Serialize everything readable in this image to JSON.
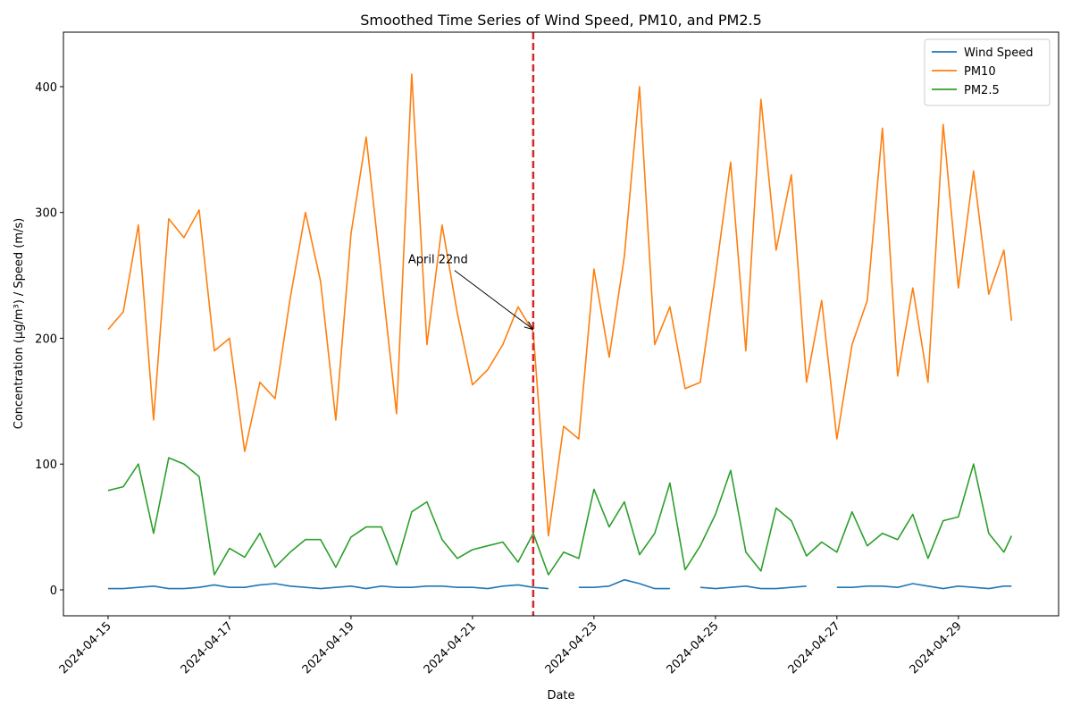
{
  "chart_data": {
    "type": "line",
    "title": "Smoothed Time Series of Wind Speed, PM10, and PM2.5",
    "xlabel": "Date",
    "ylabel": "Concentration (µg/m³) / Speed (m/s)",
    "x": [
      "2024-04-15 00:00",
      "2024-04-15 06:00",
      "2024-04-15 12:00",
      "2024-04-15 18:00",
      "2024-04-16 00:00",
      "2024-04-16 06:00",
      "2024-04-16 12:00",
      "2024-04-16 18:00",
      "2024-04-17 00:00",
      "2024-04-17 06:00",
      "2024-04-17 12:00",
      "2024-04-17 18:00",
      "2024-04-18 00:00",
      "2024-04-18 06:00",
      "2024-04-18 12:00",
      "2024-04-18 18:00",
      "2024-04-19 00:00",
      "2024-04-19 06:00",
      "2024-04-19 12:00",
      "2024-04-19 18:00",
      "2024-04-20 00:00",
      "2024-04-20 06:00",
      "2024-04-20 12:00",
      "2024-04-20 18:00",
      "2024-04-21 00:00",
      "2024-04-21 06:00",
      "2024-04-21 12:00",
      "2024-04-21 18:00",
      "2024-04-22 00:00",
      "2024-04-22 06:00",
      "2024-04-22 12:00",
      "2024-04-22 18:00",
      "2024-04-23 00:00",
      "2024-04-23 06:00",
      "2024-04-23 12:00",
      "2024-04-23 18:00",
      "2024-04-24 00:00",
      "2024-04-24 06:00",
      "2024-04-24 12:00",
      "2024-04-24 18:00",
      "2024-04-25 00:00",
      "2024-04-25 06:00",
      "2024-04-25 12:00",
      "2024-04-25 18:00",
      "2024-04-26 00:00",
      "2024-04-26 06:00",
      "2024-04-26 12:00",
      "2024-04-26 18:00",
      "2024-04-27 00:00",
      "2024-04-27 06:00",
      "2024-04-27 12:00",
      "2024-04-27 18:00",
      "2024-04-28 00:00",
      "2024-04-28 06:00",
      "2024-04-28 12:00",
      "2024-04-28 18:00",
      "2024-04-29 00:00",
      "2024-04-29 06:00",
      "2024-04-29 12:00",
      "2024-04-29 18:00",
      "2024-04-29 21:00"
    ],
    "series": [
      {
        "name": "Wind Speed",
        "color": "#1f77b4",
        "values": [
          1,
          1,
          2,
          3,
          1,
          1,
          2,
          4,
          2,
          2,
          4,
          5,
          3,
          2,
          1,
          2,
          3,
          1,
          3,
          2,
          2,
          3,
          3,
          2,
          2,
          1,
          3,
          4,
          2,
          1,
          null,
          2,
          2,
          3,
          8,
          5,
          1,
          1,
          null,
          2,
          1,
          2,
          3,
          1,
          1,
          2,
          3,
          null,
          2,
          2,
          3,
          3,
          2,
          5,
          3,
          1,
          3,
          2,
          1,
          3,
          3
        ]
      },
      {
        "name": "PM10",
        "color": "#ff7f0e",
        "values": [
          207,
          221,
          290,
          135,
          295,
          280,
          302,
          190,
          200,
          110,
          165,
          152,
          232,
          300,
          245,
          135,
          283,
          360,
          250,
          140,
          410,
          195,
          290,
          220,
          163,
          175,
          195,
          225,
          205,
          43,
          130,
          120,
          255,
          185,
          265,
          400,
          195,
          225,
          160,
          165,
          250,
          340,
          190,
          390,
          270,
          330,
          165,
          230,
          120,
          195,
          230,
          367,
          170,
          240,
          165,
          370,
          240,
          333,
          235,
          270,
          214
        ]
      },
      {
        "name": "PM2.5",
        "color": "#2ca02c",
        "values": [
          79,
          82,
          100,
          45,
          105,
          100,
          90,
          12,
          33,
          26,
          45,
          18,
          30,
          40,
          40,
          18,
          42,
          50,
          50,
          20,
          62,
          70,
          40,
          25,
          32,
          35,
          38,
          22,
          45,
          12,
          30,
          25,
          80,
          50,
          70,
          28,
          45,
          85,
          16,
          35,
          60,
          95,
          30,
          15,
          65,
          55,
          27,
          38,
          30,
          62,
          35,
          45,
          40,
          60,
          25,
          55,
          58,
          100,
          45,
          30,
          43
        ]
      }
    ],
    "xlim": [
      "2024-04-14 06:22",
      "2024-04-30 15:36"
    ],
    "xticks": [
      "2024-04-15",
      "2024-04-17",
      "2024-04-19",
      "2024-04-21",
      "2024-04-23",
      "2024-04-25",
      "2024-04-27",
      "2024-04-29"
    ],
    "ylim": [
      -20.6,
      443.3
    ],
    "yticks": [
      0,
      100,
      200,
      300,
      400
    ],
    "vline": {
      "x": "2024-04-22",
      "color": "#d62728",
      "style": "dashed"
    },
    "annotation": {
      "text": "April 22nd",
      "x": "2024-04-22",
      "y": 207
    },
    "legend": "upper right",
    "grid": false
  }
}
